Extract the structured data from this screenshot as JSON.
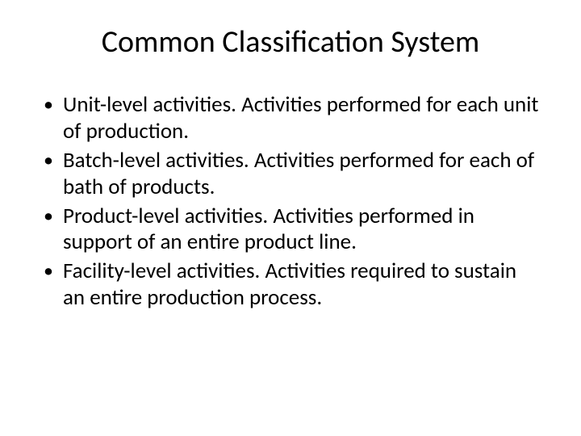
{
  "title": "Common Classification System",
  "bullets": [
    "Unit-level activities. Activities performed for each unit of production.",
    "Batch-level activities. Activities performed for each of bath of products.",
    "Product-level activities. Activities performed in support of an entire product line.",
    "Facility-level activities. Activities required to sustain an entire production process."
  ],
  "colors": {
    "background": "#ffffff",
    "text": "#000000"
  },
  "typography": {
    "title_fontsize": 38,
    "body_fontsize": 27,
    "font_family": "Calibri"
  }
}
